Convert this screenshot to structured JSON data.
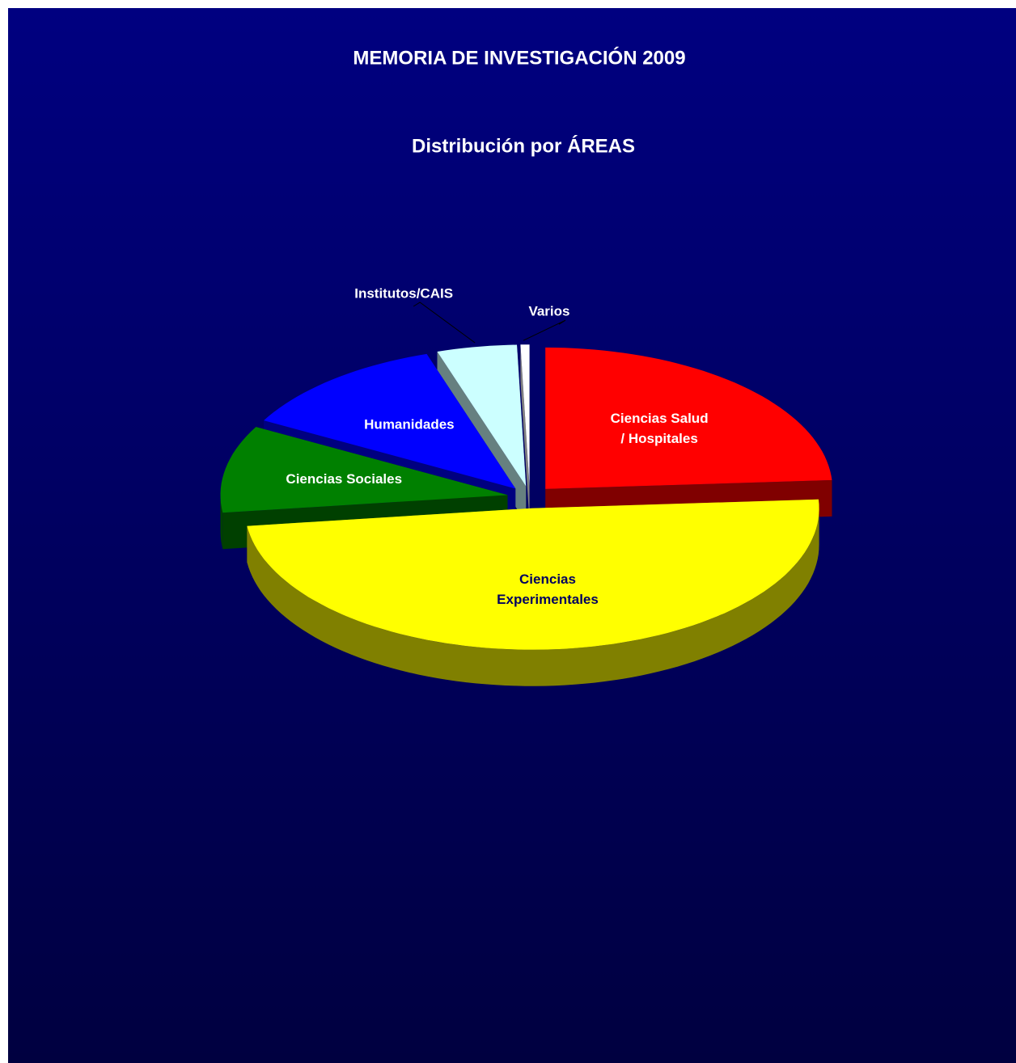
{
  "chart_data": {
    "type": "pie3d",
    "title": "MEMORIA DE INVESTIGACIÓN 2009",
    "subtitle": "Distribución por ÁREAS",
    "categories": [
      "Ciencias Salud / Hospitales",
      "Ciencias Experimentales",
      "Ciencias Sociales",
      "Humanidades",
      "Institutos/CAIS",
      "Varios"
    ],
    "values": [
      24,
      49,
      10,
      12,
      4.5,
      0.5
    ],
    "colors": [
      "#ff0000",
      "#ffff00",
      "#008000",
      "#0000ff",
      "#ccffff",
      "#ffffff"
    ]
  }
}
